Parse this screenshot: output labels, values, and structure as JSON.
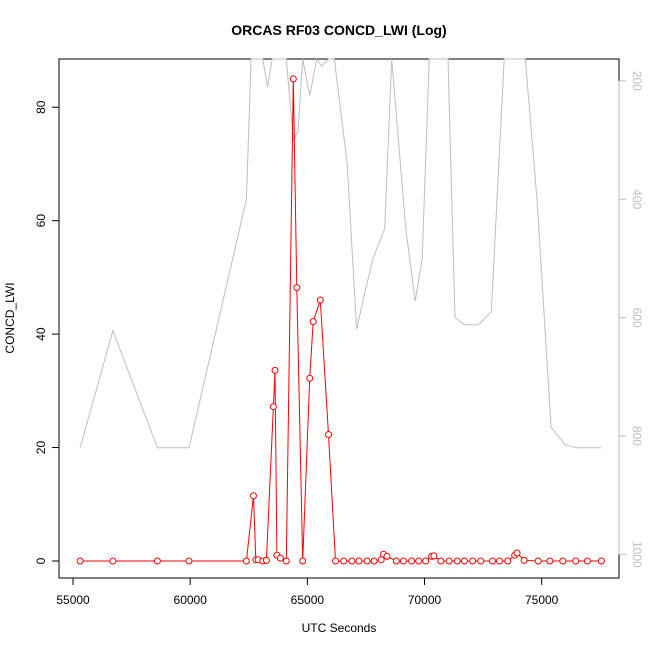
{
  "chart_data": {
    "type": "line",
    "title": "ORCAS RF03 CONCD_LWI (Log)",
    "xlabel": "UTC Seconds",
    "ylabel": "CONCD_LWI",
    "xlim": [
      54400,
      78300
    ],
    "ylim": [
      -3,
      88.5
    ],
    "y2lim": [
      1040,
      163
    ],
    "x_ticks": [
      55000,
      60000,
      65000,
      70000,
      75000
    ],
    "y_ticks": [
      0,
      20,
      40,
      60,
      80
    ],
    "y2_ticks": [
      200,
      400,
      600,
      800,
      1000
    ],
    "grid": false,
    "colors": {
      "series": "#ff0000",
      "secondary": "#bebebe"
    },
    "series": [
      {
        "marker": "open-circle",
        "color": "#ff0000",
        "x": [
          55300,
          56700,
          58600,
          59950,
          62400,
          62700,
          62800,
          62900,
          63100,
          63250,
          63550,
          63620,
          63700,
          63850,
          64100,
          64400,
          64550,
          64800,
          65100,
          65250,
          65550,
          65900,
          66200,
          66550,
          66900,
          67200,
          67550,
          67850,
          68150,
          68250,
          68400,
          68800,
          69100,
          69450,
          69750,
          70050,
          70300,
          70400,
          70700,
          71050,
          71400,
          71700,
          72050,
          72400,
          72900,
          73200,
          73550,
          73850,
          73950,
          74250,
          74850,
          75350,
          75900,
          76450,
          76950,
          77550
        ],
        "y": [
          0,
          0,
          0,
          0,
          0,
          11.5,
          0.2,
          0.2,
          0,
          0.1,
          27.2,
          33.6,
          1,
          0.5,
          0,
          85,
          48.2,
          0,
          32.2,
          42.2,
          46,
          22.3,
          0,
          0,
          0,
          0,
          0,
          0,
          0.2,
          1.2,
          0.8,
          0,
          0,
          0,
          0,
          0,
          0.8,
          0.9,
          0,
          0,
          0,
          0,
          0,
          0,
          0,
          0,
          0,
          1,
          1.4,
          0.1,
          0,
          0,
          0,
          0,
          0,
          0
        ]
      },
      {
        "axis": "right",
        "color": "#bebebe",
        "x": [
          55300,
          56700,
          58600,
          59950,
          62400,
          62600,
          63100,
          63300,
          63500,
          64100,
          64400,
          64600,
          64800,
          65100,
          65400,
          65600,
          65900,
          66150,
          66700,
          67100,
          67500,
          67800,
          68300,
          68600,
          69200,
          69600,
          69900,
          70200,
          70400,
          70600,
          71000,
          71300,
          71700,
          72300,
          72850,
          73400,
          73700,
          74300,
          74800,
          75400,
          76000,
          76500,
          77550
        ],
        "y": [
          820,
          622,
          820,
          820,
          400,
          163,
          163,
          210,
          163,
          163,
          300,
          285,
          163,
          225,
          163,
          175,
          163,
          163,
          340,
          620,
          550,
          500,
          450,
          163,
          450,
          572,
          500,
          163,
          163,
          163,
          163,
          600,
          612,
          612,
          590,
          163,
          163,
          163,
          400,
          785,
          815,
          820,
          820
        ]
      }
    ]
  }
}
